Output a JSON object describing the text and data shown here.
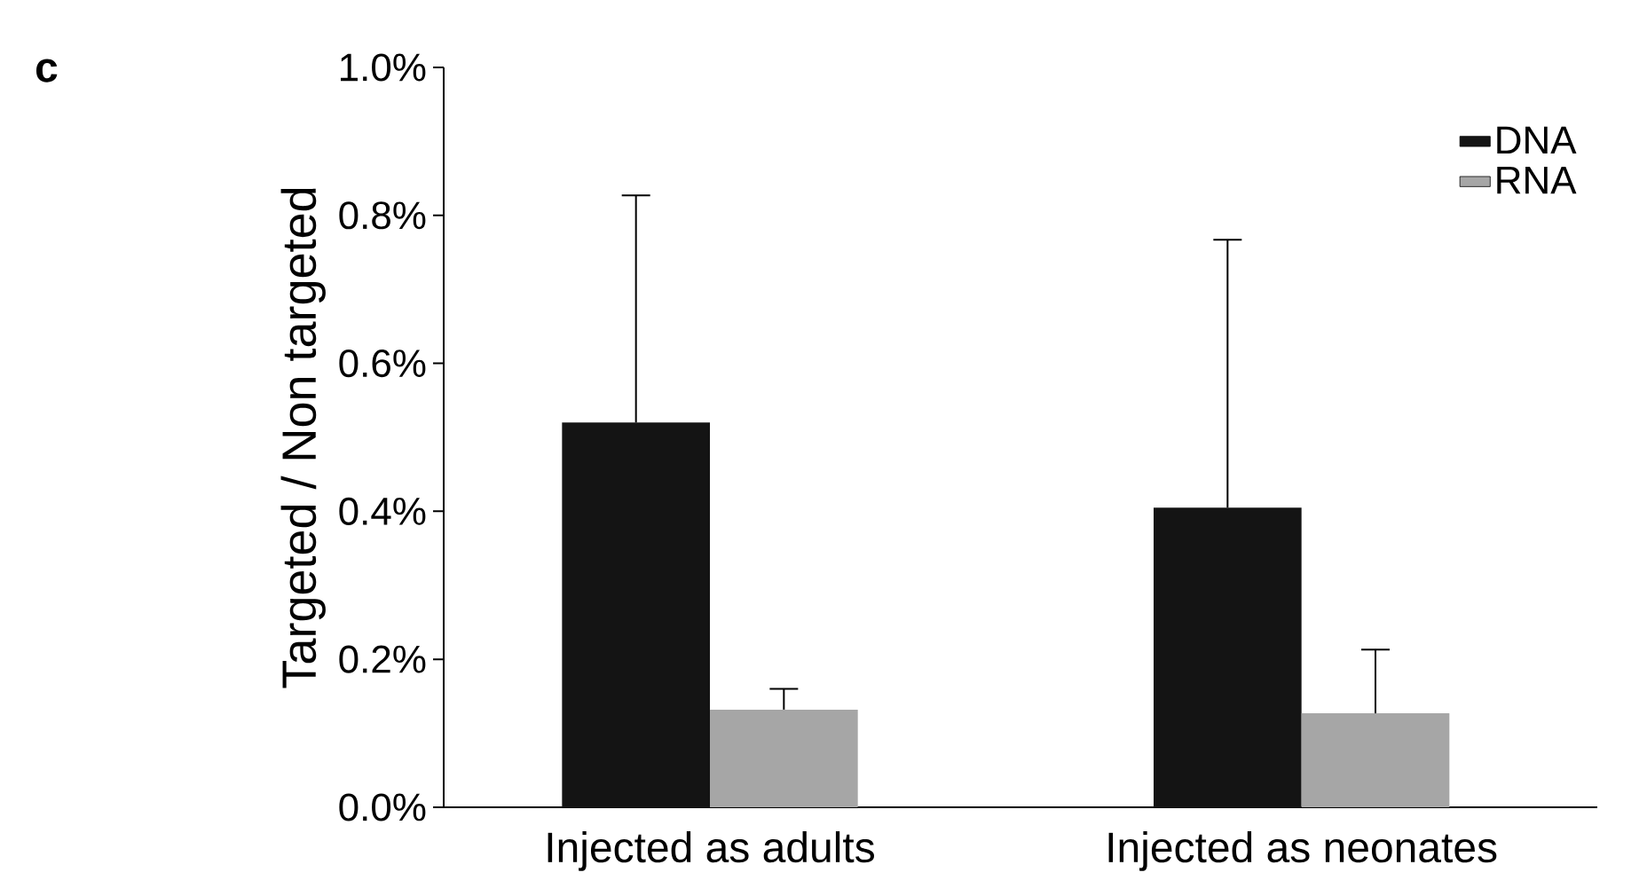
{
  "chart_data": {
    "type": "bar",
    "ylabel": "Targeted / Non targeted",
    "annotations": [
      "c"
    ],
    "categories": [
      "Injected as adults",
      "Injected as neonates"
    ],
    "series": [
      {
        "name": "DNA",
        "color": "#141414",
        "values": [
          0.52,
          0.405
        ],
        "errors": [
          [
            0.52,
            0.827
          ],
          [
            0.405,
            0.767
          ]
        ]
      },
      {
        "name": "RNA",
        "color": "#a6a6a6",
        "values": [
          0.132,
          0.127
        ],
        "errors": [
          [
            0.132,
            0.16
          ],
          [
            0.127,
            0.213
          ]
        ]
      }
    ],
    "ylim": [
      0,
      1.0
    ],
    "yticks": [
      {
        "value": 0,
        "label": "0.0%"
      },
      {
        "value": 0.2,
        "label": "0.2%"
      },
      {
        "value": 0.4,
        "label": "0.4%"
      },
      {
        "value": 0.6,
        "label": "0.6%"
      },
      {
        "value": 0.8,
        "label": "0.8%"
      },
      {
        "value": 1.0,
        "label": "1.0%"
      }
    ],
    "grid": false,
    "legend": "top right"
  }
}
